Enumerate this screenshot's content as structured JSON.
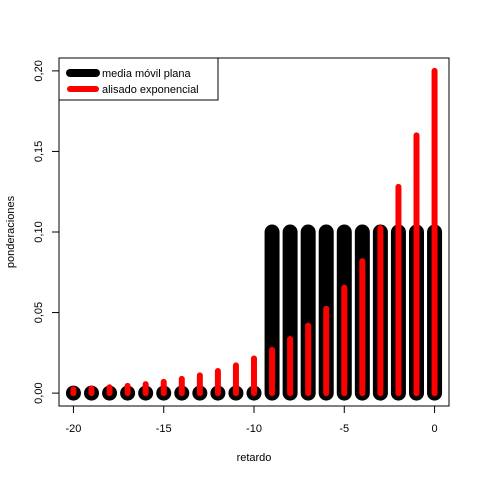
{
  "chart_data": {
    "type": "bar",
    "xlabel": "retardo",
    "ylabel": "ponderaciones",
    "xlim": [
      -20.8,
      0.8
    ],
    "ylim": [
      -0.008,
      0.208
    ],
    "x_ticks": [
      -20,
      -15,
      -10,
      -5,
      0
    ],
    "x_tick_labels": [
      "-20",
      "-15",
      "-10",
      "-5",
      "0"
    ],
    "y_ticks": [
      0.0,
      0.05,
      0.1,
      0.15,
      0.2
    ],
    "y_tick_labels": [
      "0,00",
      "0,05",
      "0,10",
      "0,15",
      "0,20"
    ],
    "legend_position": "top-left",
    "grid": false,
    "series": [
      {
        "name": "media móvil plana",
        "color": "#000000",
        "style": "thick-bars",
        "x": [
          -20,
          -19,
          -18,
          -17,
          -16,
          -15,
          -14,
          -13,
          -12,
          -11,
          -10,
          -9,
          -8,
          -7,
          -6,
          -5,
          -4,
          -3,
          -2,
          -1,
          0
        ],
        "values": [
          0,
          0,
          0,
          0,
          0,
          0,
          0,
          0,
          0,
          0,
          0,
          0.1,
          0.1,
          0.1,
          0.1,
          0.1,
          0.1,
          0.1,
          0.1,
          0.1,
          0.1
        ]
      },
      {
        "name": "alisado exponencial",
        "color": "#ff0000",
        "style": "thin-bars",
        "x": [
          -20,
          -19,
          -18,
          -17,
          -16,
          -15,
          -14,
          -13,
          -12,
          -11,
          -10,
          -9,
          -8,
          -7,
          -6,
          -5,
          -4,
          -3,
          -2,
          -1,
          0
        ],
        "values": [
          0.0023,
          0.0029,
          0.0036,
          0.0045,
          0.0056,
          0.007,
          0.0088,
          0.011,
          0.0137,
          0.0172,
          0.0215,
          0.0268,
          0.0336,
          0.0419,
          0.0524,
          0.0655,
          0.0819,
          0.1024,
          0.128,
          0.16,
          0.2
        ]
      }
    ]
  }
}
